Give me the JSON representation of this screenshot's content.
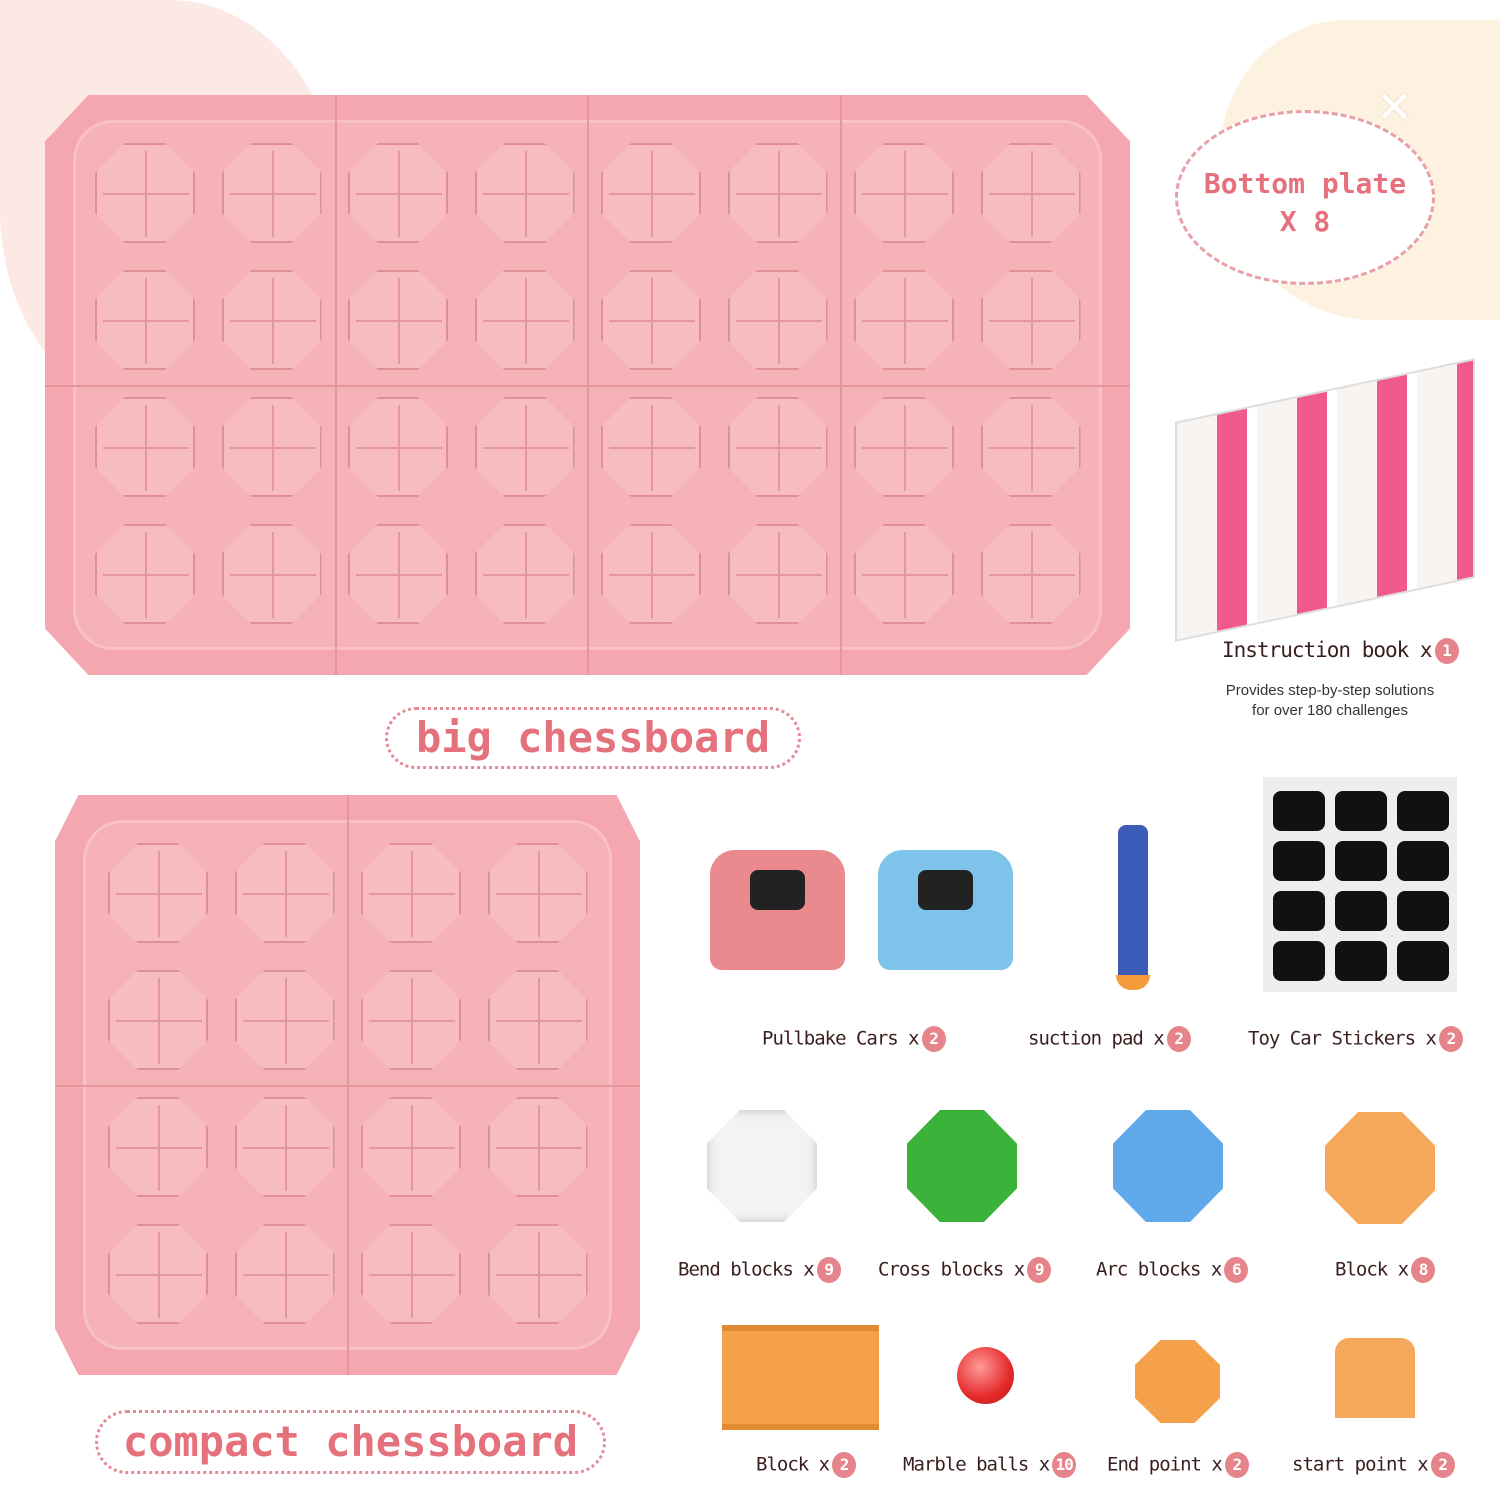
{
  "colors": {
    "board": "#f4a7ae",
    "accent": "#e5717d",
    "badge": "#e6848b",
    "text": "#3a1e1e"
  },
  "big_board": {
    "label": "big chessboard",
    "rows": 4,
    "cols": 8
  },
  "compact_board": {
    "label": "compact chessboard",
    "rows": 4,
    "cols": 4
  },
  "bottom_plate": {
    "line1": "Bottom plate",
    "line2": "X 8",
    "icon": "close-x-icon"
  },
  "instruction": {
    "label": "Instruction book x",
    "count": "1",
    "desc_line1": "Provides step-by-step solutions",
    "desc_line2": "for over 180 challenges"
  },
  "items": [
    {
      "label": "Pullbake Cars x",
      "count": "2"
    },
    {
      "label": "suction pad x",
      "count": "2"
    },
    {
      "label": "Toy Car Stickers x",
      "count": "2"
    },
    {
      "label": "Bend blocks x",
      "count": "9"
    },
    {
      "label": "Cross blocks x",
      "count": "9"
    },
    {
      "label": "Arc blocks x",
      "count": "6"
    },
    {
      "label": "Block x",
      "count": "8"
    },
    {
      "label": "Block x",
      "count": "2"
    },
    {
      "label": "Marble balls x",
      "count": "10"
    },
    {
      "label": "End point x",
      "count": "2"
    },
    {
      "label": "start point x",
      "count": "2"
    }
  ]
}
